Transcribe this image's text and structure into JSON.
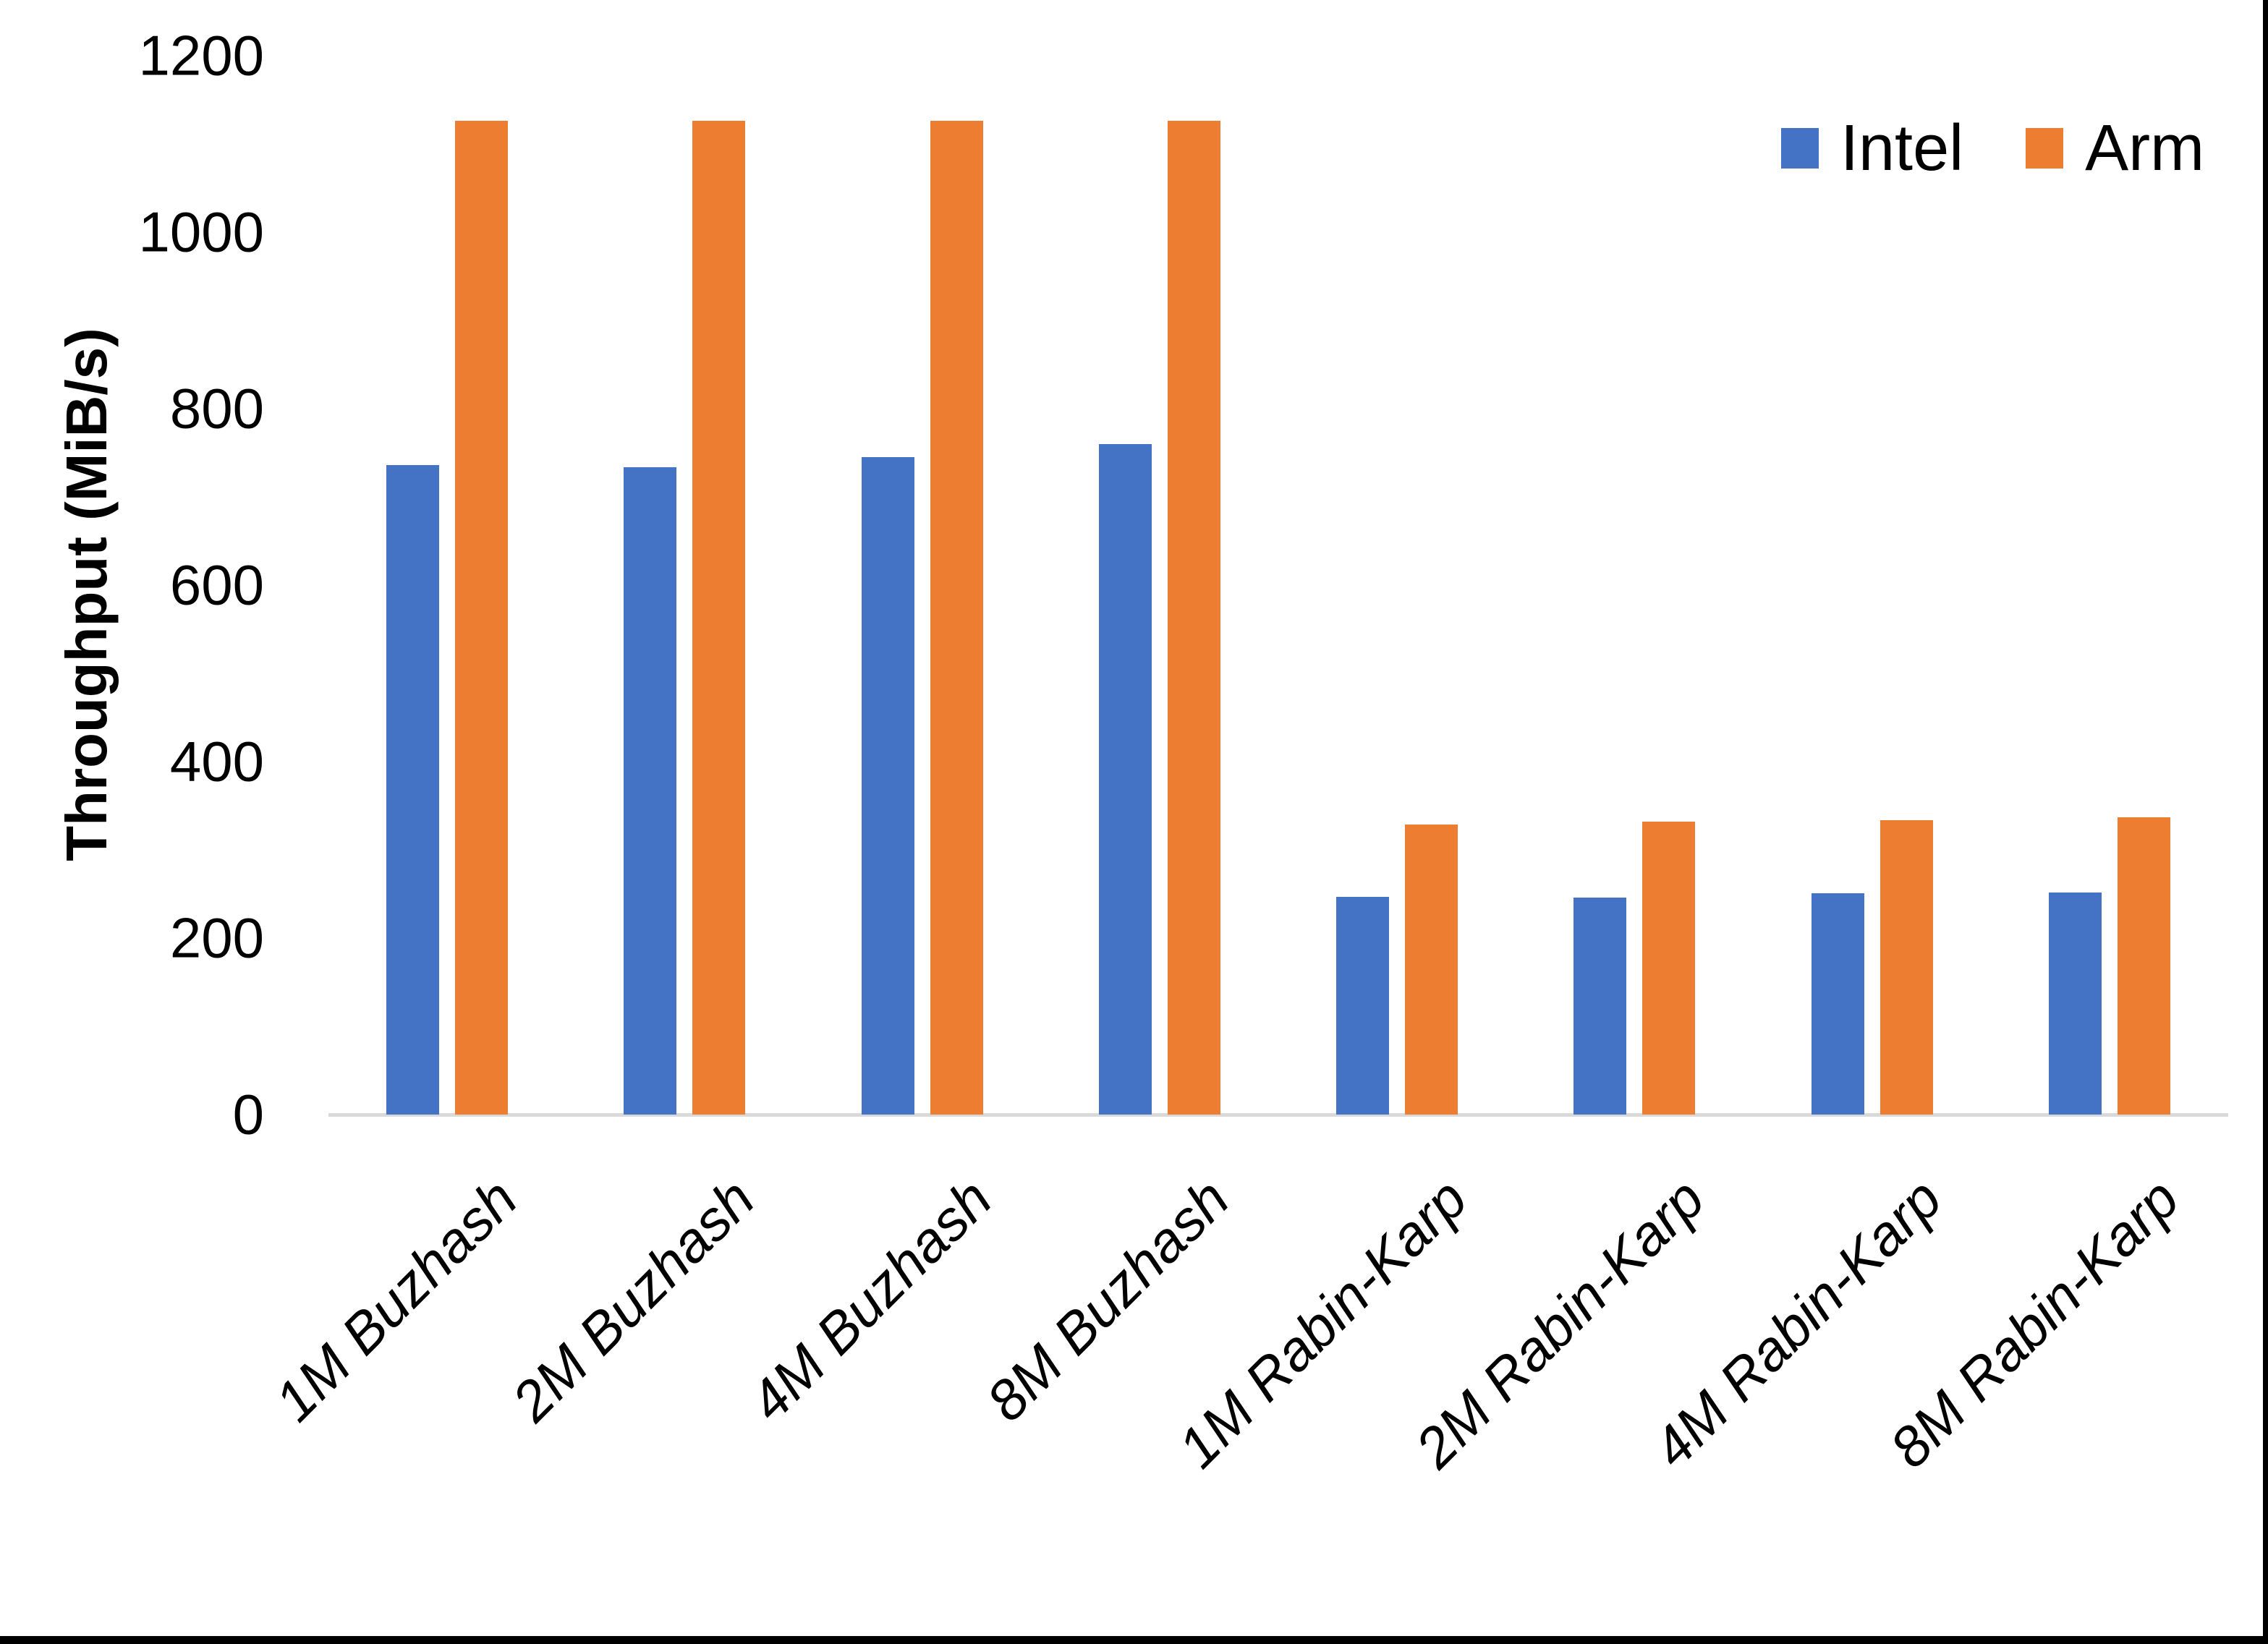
{
  "chart_data": {
    "type": "bar",
    "title": "",
    "categories": [
      "1M Buzhash",
      "2M Buzhash",
      "4M Buzhash",
      "8M Buzhash",
      "1M Rabin-Karp",
      "2M Rabin-Karp",
      "4M Rabin-Karp",
      "8M Rabin-Karp"
    ],
    "series": [
      {
        "name": "Intel",
        "color": "#4472C4",
        "values": [
          736,
          734,
          745,
          760,
          247,
          246,
          251,
          252
        ]
      },
      {
        "name": "Arm",
        "color": "#ED7D31",
        "values": [
          1126,
          1126,
          1126,
          1126,
          329,
          332,
          334,
          337
        ]
      }
    ],
    "ylabel": "Throughput (MiB/s)",
    "xlabel": "",
    "yticks": [
      0,
      200,
      400,
      600,
      800,
      1000,
      1200
    ],
    "ylim": [
      0,
      1200
    ],
    "grid": false,
    "legend": {
      "position": "top-right",
      "entries": [
        "Intel",
        "Arm"
      ]
    }
  },
  "colors": {
    "axis_line": "#D9D9D9",
    "text": "#000000",
    "background": "#FFFFFF",
    "page_border": "#000000"
  }
}
